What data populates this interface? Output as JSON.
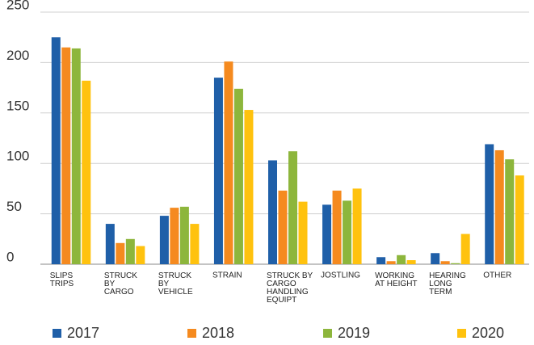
{
  "chart_data": {
    "type": "bar",
    "categories": [
      "SLIPS\nTRIPS",
      "STRUCK\nBY\nCARGO",
      "STRUCK\nBY\nVEHICLE",
      "STRAIN",
      "STRUCK BY\nCARGO\nHANDLING\nEQUIPT",
      "JOSTLING",
      "WORKING\nAT HEIGHT",
      "HEARING\nLONG\nTERM",
      "OTHER"
    ],
    "series": [
      {
        "name": "2017",
        "color": "#1f5fa8",
        "values": [
          225,
          40,
          48,
          185,
          103,
          59,
          7,
          11,
          119
        ]
      },
      {
        "name": "2018",
        "color": "#f58a1f",
        "values": [
          215,
          21,
          56,
          201,
          73,
          73,
          3,
          3,
          113
        ]
      },
      {
        "name": "2019",
        "color": "#8db63c",
        "values": [
          214,
          25,
          57,
          174,
          112,
          63,
          9,
          1,
          104
        ]
      },
      {
        "name": "2020",
        "color": "#ffc20e",
        "values": [
          182,
          18,
          40,
          153,
          62,
          75,
          4,
          30,
          88
        ]
      }
    ],
    "ylim": [
      0,
      250
    ],
    "yticks": [
      0,
      50,
      100,
      150,
      200,
      250
    ],
    "grid": true,
    "legend": "bottom"
  }
}
